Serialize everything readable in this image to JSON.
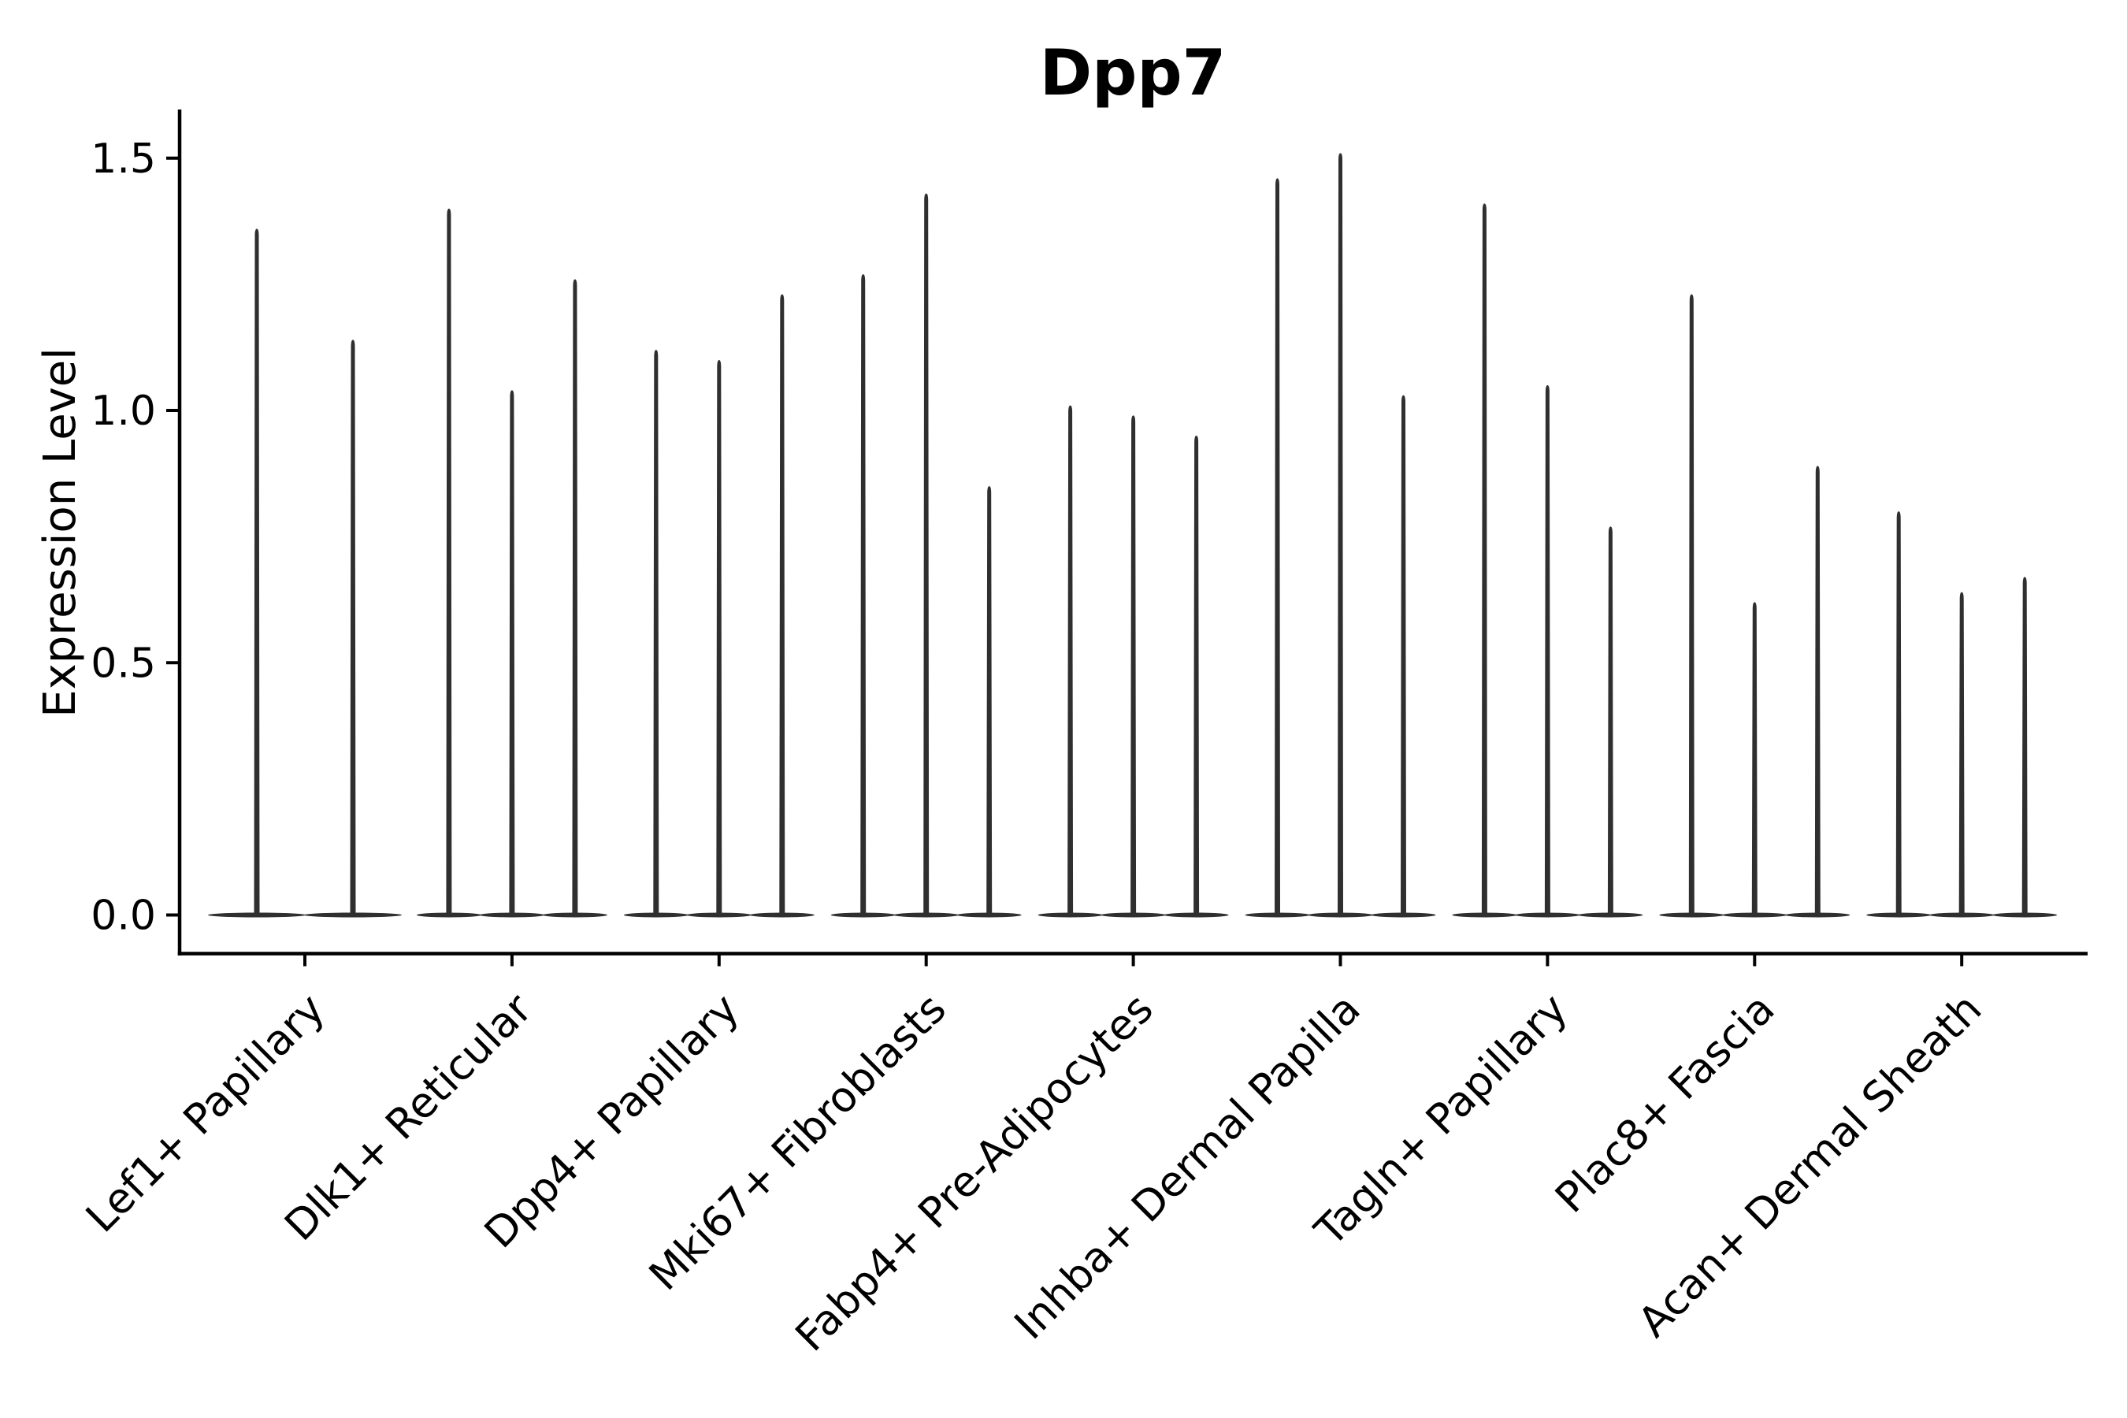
{
  "chart_data": {
    "type": "violin",
    "title": "Dpp7",
    "ylabel": "Expression Level",
    "xlabel": "",
    "ylim": [
      -0.08,
      1.6
    ],
    "ytick_values": [
      0.0,
      0.5,
      1.0,
      1.5
    ],
    "ytick_labels": [
      "0.0",
      "0.5",
      "1.0",
      "1.5"
    ],
    "grid": false,
    "legend_position": "none",
    "x_tick_label_rotation_deg": 45,
    "violin_color": "#2f2f2f",
    "axis_color": "#000000",
    "violin_shape": "dense flat base at 0 with a single thin spike up to the maximum value",
    "categories": [
      "Lef1+ Papillary",
      "Dlk1+ Reticular",
      "Dpp4+ Papillary",
      "Mki67+ Fibroblasts",
      "Fabp4+ Pre-Adipocytes",
      "Inhba+ Dermal Papilla",
      "Tagln+ Papillary",
      "Plac8+ Fascia",
      "Acan+ Dermal Sheath"
    ],
    "series": [
      {
        "category": "Lef1+ Papillary",
        "violin_maxima": [
          1.36,
          1.14
        ]
      },
      {
        "category": "Dlk1+ Reticular",
        "violin_maxima": [
          1.4,
          1.04,
          1.26
        ]
      },
      {
        "category": "Dpp4+ Papillary",
        "violin_maxima": [
          1.12,
          1.1,
          1.23
        ]
      },
      {
        "category": "Mki67+ Fibroblasts",
        "violin_maxima": [
          1.27,
          1.43,
          0.85
        ]
      },
      {
        "category": "Fabp4+ Pre-Adipocytes",
        "violin_maxima": [
          1.01,
          0.99,
          0.95
        ]
      },
      {
        "category": "Inhba+ Dermal Papilla",
        "violin_maxima": [
          1.46,
          1.51,
          1.03
        ]
      },
      {
        "category": "Tagln+ Papillary",
        "violin_maxima": [
          1.41,
          1.05,
          0.77
        ]
      },
      {
        "category": "Plac8+ Fascia",
        "violin_maxima": [
          1.23,
          0.62,
          0.89
        ]
      },
      {
        "category": "Acan+ Dermal Sheath",
        "violin_maxima": [
          0.8,
          0.64,
          0.67
        ]
      }
    ]
  }
}
